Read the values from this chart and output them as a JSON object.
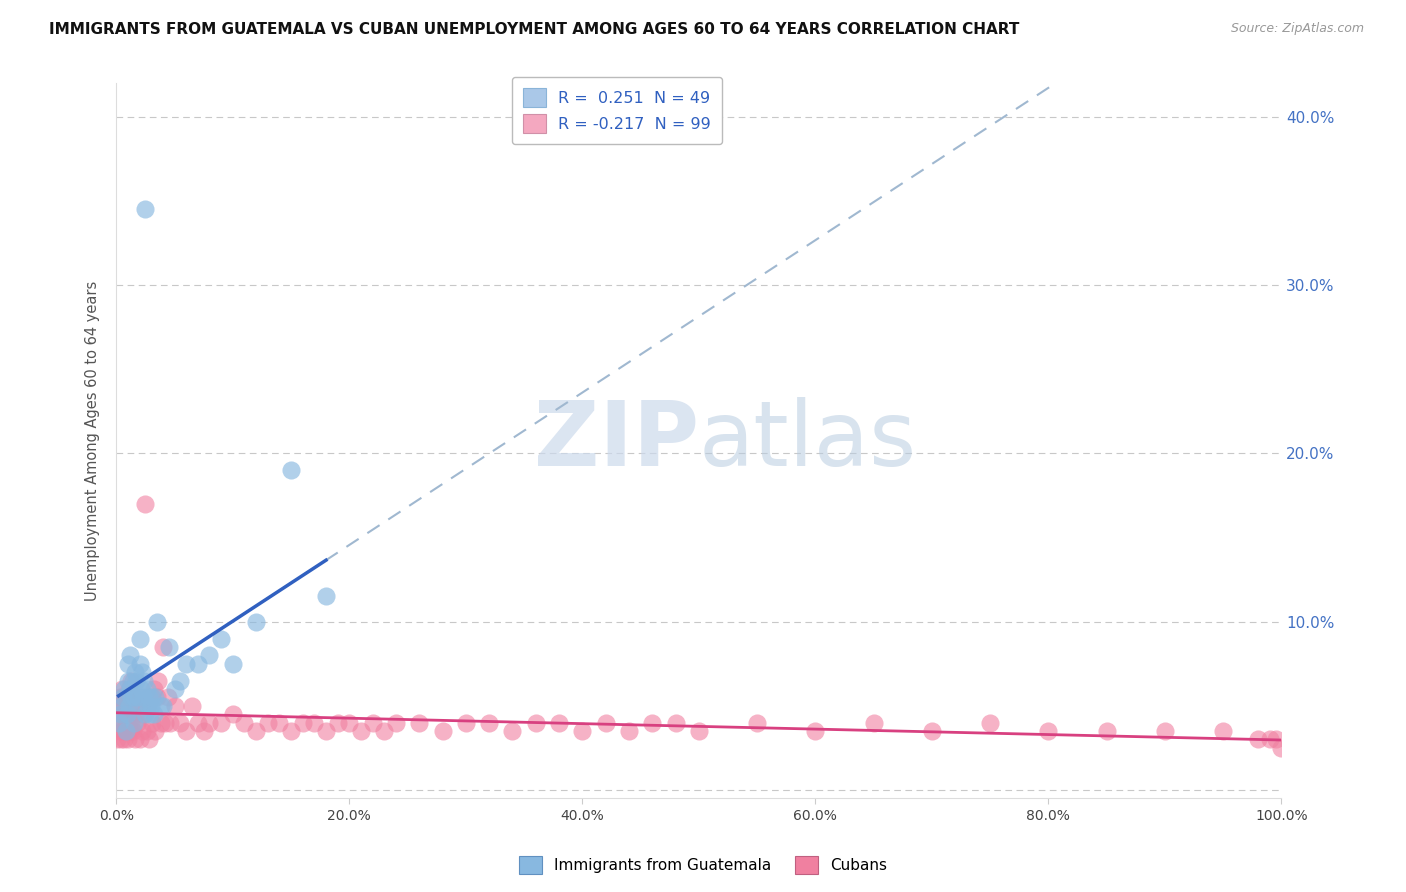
{
  "title": "IMMIGRANTS FROM GUATEMALA VS CUBAN UNEMPLOYMENT AMONG AGES 60 TO 64 YEARS CORRELATION CHART",
  "source": "Source: ZipAtlas.com",
  "ylabel": "Unemployment Among Ages 60 to 64 years",
  "xlabel_ticks": [
    "0.0%",
    "20.0%",
    "40.0%",
    "60.0%",
    "80.0%",
    "100.0%"
  ],
  "ylabel_ticks_right": [
    "",
    "10.0%",
    "20.0%",
    "30.0%",
    "40.0%"
  ],
  "xlim": [
    0,
    1.0
  ],
  "ylim": [
    -0.005,
    0.42
  ],
  "legend1_label": "R =  0.251  N = 49",
  "legend2_label": "R = -0.217  N = 99",
  "legend1_patch_color": "#aac8e8",
  "legend2_patch_color": "#f4a8c0",
  "line1_color": "#3060c0",
  "line2_color": "#d84080",
  "dash_color": "#a0b8d0",
  "watermark_color": "#ccdaec",
  "scatter_guatemala_color": "#88b8e0",
  "scatter_cuban_color": "#f080a0",
  "background_color": "#ffffff",
  "grid_color": "#c8c8c8",
  "ytick_right_color": "#4472C4",
  "title_fontsize": 11.5,
  "axis_fontsize": 10.5,
  "guatemala_x": [
    0.002,
    0.004,
    0.005,
    0.006,
    0.007,
    0.008,
    0.009,
    0.01,
    0.01,
    0.011,
    0.012,
    0.012,
    0.013,
    0.014,
    0.015,
    0.015,
    0.016,
    0.017,
    0.018,
    0.019,
    0.02,
    0.02,
    0.021,
    0.022,
    0.023,
    0.024,
    0.025,
    0.026,
    0.027,
    0.028,
    0.029,
    0.03,
    0.031,
    0.032,
    0.033,
    0.035,
    0.038,
    0.04,
    0.045,
    0.05,
    0.055,
    0.06,
    0.07,
    0.08,
    0.09,
    0.1,
    0.12,
    0.15,
    0.18
  ],
  "guatemala_y": [
    0.04,
    0.045,
    0.05,
    0.055,
    0.06,
    0.035,
    0.045,
    0.065,
    0.075,
    0.05,
    0.06,
    0.08,
    0.055,
    0.065,
    0.04,
    0.055,
    0.07,
    0.065,
    0.05,
    0.055,
    0.075,
    0.09,
    0.06,
    0.07,
    0.055,
    0.065,
    0.045,
    0.06,
    0.05,
    0.055,
    0.045,
    0.05,
    0.055,
    0.045,
    0.055,
    0.1,
    0.05,
    0.05,
    0.085,
    0.06,
    0.065,
    0.075,
    0.075,
    0.08,
    0.09,
    0.075,
    0.1,
    0.19,
    0.115
  ],
  "guatemala_outlier_x": [
    0.025
  ],
  "guatemala_outlier_y": [
    0.345
  ],
  "cuban_x": [
    0.001,
    0.002,
    0.002,
    0.003,
    0.003,
    0.004,
    0.004,
    0.005,
    0.005,
    0.006,
    0.006,
    0.007,
    0.007,
    0.008,
    0.008,
    0.009,
    0.009,
    0.01,
    0.01,
    0.011,
    0.011,
    0.012,
    0.012,
    0.013,
    0.013,
    0.014,
    0.015,
    0.016,
    0.017,
    0.018,
    0.019,
    0.02,
    0.021,
    0.022,
    0.023,
    0.025,
    0.026,
    0.027,
    0.028,
    0.03,
    0.031,
    0.032,
    0.033,
    0.035,
    0.036,
    0.038,
    0.04,
    0.042,
    0.044,
    0.046,
    0.05,
    0.055,
    0.06,
    0.065,
    0.07,
    0.075,
    0.08,
    0.09,
    0.1,
    0.11,
    0.12,
    0.13,
    0.14,
    0.15,
    0.16,
    0.17,
    0.18,
    0.19,
    0.2,
    0.21,
    0.22,
    0.23,
    0.24,
    0.26,
    0.28,
    0.3,
    0.32,
    0.34,
    0.36,
    0.38,
    0.4,
    0.42,
    0.44,
    0.46,
    0.48,
    0.5,
    0.55,
    0.6,
    0.65,
    0.7,
    0.75,
    0.8,
    0.85,
    0.9,
    0.95,
    0.98,
    0.99,
    0.995,
    1.0
  ],
  "cuban_y": [
    0.03,
    0.04,
    0.05,
    0.035,
    0.055,
    0.03,
    0.045,
    0.04,
    0.06,
    0.035,
    0.055,
    0.03,
    0.05,
    0.035,
    0.045,
    0.04,
    0.055,
    0.03,
    0.05,
    0.04,
    0.06,
    0.035,
    0.05,
    0.04,
    0.065,
    0.035,
    0.055,
    0.03,
    0.045,
    0.04,
    0.05,
    0.03,
    0.055,
    0.035,
    0.045,
    0.17,
    0.035,
    0.05,
    0.03,
    0.055,
    0.04,
    0.06,
    0.035,
    0.055,
    0.065,
    0.04,
    0.085,
    0.04,
    0.055,
    0.04,
    0.05,
    0.04,
    0.035,
    0.05,
    0.04,
    0.035,
    0.04,
    0.04,
    0.045,
    0.04,
    0.035,
    0.04,
    0.04,
    0.035,
    0.04,
    0.04,
    0.035,
    0.04,
    0.04,
    0.035,
    0.04,
    0.035,
    0.04,
    0.04,
    0.035,
    0.04,
    0.04,
    0.035,
    0.04,
    0.04,
    0.035,
    0.04,
    0.035,
    0.04,
    0.04,
    0.035,
    0.04,
    0.035,
    0.04,
    0.035,
    0.04,
    0.035,
    0.035,
    0.035,
    0.035,
    0.03,
    0.03,
    0.03,
    0.025
  ]
}
